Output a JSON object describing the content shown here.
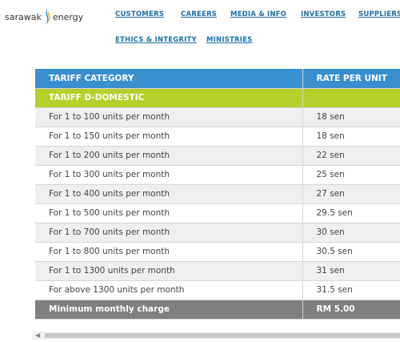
{
  "header": {
    "logo": {
      "left": "sarawak",
      "right": "energy"
    },
    "nav": [
      "CUSTOMERS",
      "CAREERS",
      "MEDIA & INFO",
      "INVESTORS",
      "SUPPLIERS",
      "ETHICS & INTEGRITY",
      "MINISTRIES"
    ]
  },
  "table": {
    "columns": [
      "TARIFF CATEGORY",
      "RATE PER UNIT"
    ],
    "section": "TARIFF D-DOMESTIC",
    "rows": [
      [
        "For 1 to 100 units per month",
        "18 sen"
      ],
      [
        "For 1 to 150 units per month",
        "18 sen"
      ],
      [
        "For 1 to 200 units per month",
        "22 sen"
      ],
      [
        "For 1 to 300 units per month",
        "25 sen"
      ],
      [
        "For 1 to 400 units per month",
        "27 sen"
      ],
      [
        "For 1 to 500 units per month",
        "29.5 sen"
      ],
      [
        "For 1 to 700 units per month",
        "30 sen"
      ],
      [
        "For 1 to 800 units per month",
        "30.5 sen"
      ],
      [
        "For 1 to 1300 units per month",
        "31 sen"
      ],
      [
        "For above 1300 units per month",
        "31.5 sen"
      ]
    ],
    "footer": [
      "Minimum monthly charge",
      "RM 5.00"
    ]
  }
}
